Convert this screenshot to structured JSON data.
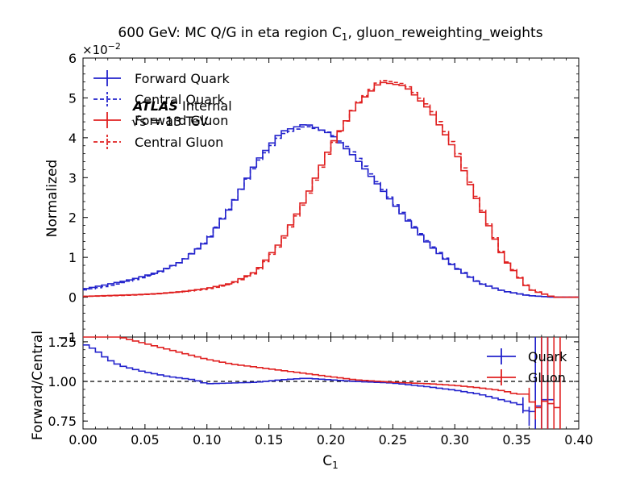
{
  "chart_data": [
    {
      "type": "line",
      "panel": "main",
      "title": "600 GeV: MC Q/G in eta region C",
      "title_subscript": "1",
      "title_suffix": ", gluon_reweighting_weights",
      "ylabel": "Normalized",
      "ylim": [
        -1,
        6
      ],
      "y_scale_label": "×10",
      "y_scale_exponent": "−2",
      "yticks": [
        "−1",
        "0",
        "1",
        "2",
        "3",
        "4",
        "5",
        "6"
      ],
      "xlim": [
        0.0,
        0.4
      ],
      "step_style": "histogram",
      "bin_width": 0.005,
      "annotation": {
        "experiment": "ATLAS",
        "status": "Internal",
        "energy": "√s = 13 TeV"
      },
      "legend": {
        "placement": "top-left",
        "entries": [
          {
            "label": "Forward Quark",
            "color": "#2222cc",
            "dashed": false
          },
          {
            "label": "Central Quark",
            "color": "#2222cc",
            "dashed": true
          },
          {
            "label": "Forward Gluon",
            "color": "#e02020",
            "dashed": false
          },
          {
            "label": "Central Gluon",
            "color": "#e02020",
            "dashed": true
          }
        ]
      },
      "series": [
        {
          "name": "Forward Quark",
          "color": "#2222cc",
          "dashed": false,
          "x": [
            0.0,
            0.02,
            0.04,
            0.06,
            0.08,
            0.1,
            0.12,
            0.14,
            0.16,
            0.18,
            0.2,
            0.22,
            0.24,
            0.26,
            0.28,
            0.3,
            0.32,
            0.34,
            0.36,
            0.38,
            0.4
          ],
          "y": [
            0.2,
            0.32,
            0.45,
            0.62,
            0.9,
            1.4,
            2.3,
            3.4,
            4.15,
            4.35,
            4.1,
            3.5,
            2.75,
            2.0,
            1.3,
            0.75,
            0.35,
            0.15,
            0.04,
            0.0,
            0.0
          ]
        },
        {
          "name": "Central Quark",
          "color": "#2222cc",
          "dashed": true,
          "x": [
            0.0,
            0.02,
            0.04,
            0.06,
            0.08,
            0.1,
            0.12,
            0.14,
            0.16,
            0.18,
            0.2,
            0.22,
            0.24,
            0.26,
            0.28,
            0.3,
            0.32,
            0.34,
            0.36,
            0.38,
            0.4
          ],
          "y": [
            0.17,
            0.28,
            0.42,
            0.6,
            0.9,
            1.42,
            2.32,
            3.35,
            4.08,
            4.3,
            4.12,
            3.58,
            2.8,
            2.03,
            1.33,
            0.77,
            0.36,
            0.15,
            0.04,
            0.0,
            0.0
          ]
        },
        {
          "name": "Forward Gluon",
          "color": "#e02020",
          "dashed": false,
          "x": [
            0.0,
            0.02,
            0.04,
            0.06,
            0.08,
            0.1,
            0.12,
            0.14,
            0.16,
            0.18,
            0.2,
            0.22,
            0.24,
            0.26,
            0.28,
            0.3,
            0.32,
            0.34,
            0.36,
            0.38,
            0.4
          ],
          "y": [
            0.02,
            0.04,
            0.06,
            0.09,
            0.14,
            0.22,
            0.35,
            0.65,
            1.4,
            2.5,
            3.8,
            4.8,
            5.4,
            5.3,
            4.7,
            3.7,
            2.3,
            0.95,
            0.2,
            0.0,
            0.0
          ]
        },
        {
          "name": "Central Gluon",
          "color": "#e02020",
          "dashed": true,
          "x": [
            0.0,
            0.02,
            0.04,
            0.06,
            0.08,
            0.1,
            0.12,
            0.14,
            0.16,
            0.18,
            0.2,
            0.22,
            0.24,
            0.26,
            0.28,
            0.3,
            0.32,
            0.34,
            0.36,
            0.38,
            0.4
          ],
          "y": [
            0.02,
            0.03,
            0.05,
            0.08,
            0.13,
            0.2,
            0.33,
            0.62,
            1.35,
            2.45,
            3.75,
            4.82,
            5.45,
            5.35,
            4.78,
            3.78,
            2.35,
            0.98,
            0.21,
            0.0,
            0.0
          ]
        }
      ]
    },
    {
      "type": "line",
      "panel": "ratio",
      "xlabel": "C",
      "xlabel_subscript": "1",
      "ylabel": "Forward/Central",
      "ylim": [
        0.7,
        1.28
      ],
      "yticks": [
        "0.75",
        "1.00",
        "1.25"
      ],
      "xlim": [
        0.0,
        0.4
      ],
      "xticks": [
        "0.00",
        "0.05",
        "0.10",
        "0.15",
        "0.20",
        "0.25",
        "0.30",
        "0.35",
        "0.40"
      ],
      "step_style": "histogram",
      "bin_width": 0.005,
      "reference_line": 1.0,
      "legend": {
        "placement": "top-right",
        "entries": [
          {
            "label": "Quark",
            "color": "#2222cc"
          },
          {
            "label": "Gluon",
            "color": "#e02020"
          }
        ]
      },
      "series": [
        {
          "name": "Quark",
          "color": "#2222cc",
          "x": [
            0.0,
            0.01,
            0.02,
            0.03,
            0.05,
            0.07,
            0.09,
            0.1,
            0.12,
            0.14,
            0.16,
            0.18,
            0.2,
            0.22,
            0.25,
            0.28,
            0.3,
            0.32,
            0.34,
            0.35,
            0.355,
            0.36,
            0.365,
            0.37,
            0.375,
            0.38
          ],
          "y": [
            1.24,
            1.2,
            1.14,
            1.1,
            1.06,
            1.03,
            1.01,
            0.985,
            0.99,
            0.995,
            1.01,
            1.02,
            1.01,
            1.0,
            0.99,
            0.965,
            0.945,
            0.92,
            0.88,
            0.86,
            0.85,
            0.78,
            0.84,
            0.85,
            0.92,
            0.85
          ],
          "error_bars": [
            {
              "x": 0.355,
              "low": 0.8,
              "high": 0.9
            },
            {
              "x": 0.36,
              "low": 0.72,
              "high": 0.84
            },
            {
              "x": 0.365,
              "low": 0.7,
              "high": 1.28
            },
            {
              "x": 0.37,
              "low": 0.7,
              "high": 1.28
            },
            {
              "x": 0.375,
              "low": 0.7,
              "high": 1.28
            }
          ]
        },
        {
          "name": "Gluon",
          "color": "#e02020",
          "x": [
            0.0,
            0.02,
            0.03,
            0.04,
            0.05,
            0.06,
            0.08,
            0.1,
            0.12,
            0.15,
            0.18,
            0.2,
            0.22,
            0.25,
            0.28,
            0.3,
            0.32,
            0.34,
            0.35,
            0.36,
            0.365,
            0.37,
            0.375,
            0.38,
            0.385
          ],
          "y": [
            1.35,
            1.3,
            1.28,
            1.26,
            1.24,
            1.22,
            1.18,
            1.14,
            1.11,
            1.08,
            1.05,
            1.03,
            1.01,
            0.995,
            0.985,
            0.975,
            0.96,
            0.94,
            0.92,
            0.92,
            0.82,
            0.85,
            0.9,
            0.82,
            0.85
          ],
          "error_bars": [
            {
              "x": 0.36,
              "low": 0.88,
              "high": 0.96
            },
            {
              "x": 0.365,
              "low": 0.76,
              "high": 0.88
            },
            {
              "x": 0.37,
              "low": 0.7,
              "high": 1.28
            },
            {
              "x": 0.375,
              "low": 0.7,
              "high": 1.28
            },
            {
              "x": 0.38,
              "low": 0.7,
              "high": 1.28
            },
            {
              "x": 0.385,
              "low": 0.7,
              "high": 1.28
            }
          ]
        }
      ]
    }
  ]
}
